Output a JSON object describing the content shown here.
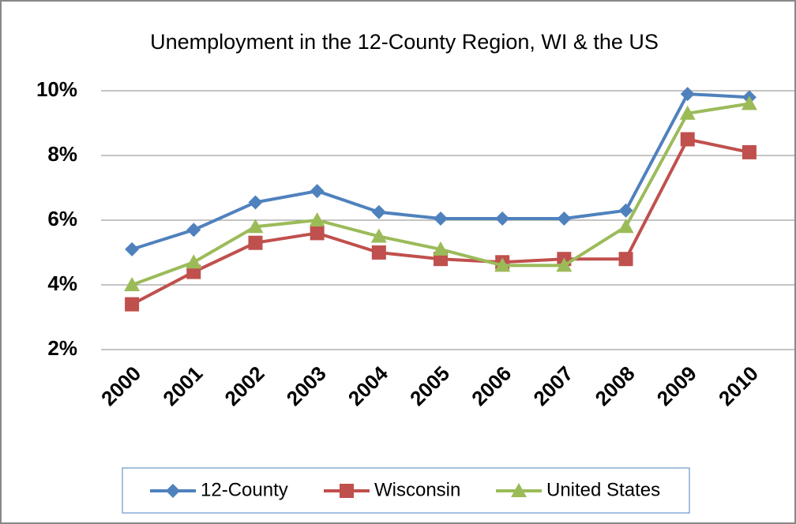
{
  "chart_data": {
    "type": "line",
    "title": "Unemployment in the 12-County Region, WI & the US",
    "categories": [
      "2000",
      "2001",
      "2002",
      "2003",
      "2004",
      "2005",
      "2006",
      "2007",
      "2008",
      "2009",
      "2010"
    ],
    "series": [
      {
        "name": "12-County",
        "color": "#4f81bd",
        "marker": "diamond",
        "values": [
          5.1,
          5.7,
          6.55,
          6.9,
          6.25,
          6.05,
          6.05,
          6.05,
          6.3,
          9.9,
          9.8
        ]
      },
      {
        "name": "Wisconsin",
        "color": "#c0504d",
        "marker": "square",
        "values": [
          3.4,
          4.4,
          5.3,
          5.6,
          5.0,
          4.8,
          4.7,
          4.8,
          4.8,
          8.5,
          8.1
        ]
      },
      {
        "name": "United States",
        "color": "#9bbb59",
        "marker": "triangle",
        "values": [
          4.0,
          4.7,
          5.8,
          6.0,
          5.5,
          5.1,
          4.6,
          4.6,
          5.8,
          9.3,
          9.6
        ]
      }
    ],
    "ylim": [
      2,
      10
    ],
    "yticks": [
      {
        "value": 2,
        "label": "2%"
      },
      {
        "value": 4,
        "label": "4%"
      },
      {
        "value": 6,
        "label": "6%"
      },
      {
        "value": 8,
        "label": "8%"
      },
      {
        "value": 10,
        "label": "10%"
      }
    ],
    "grid": true,
    "legend": "bottom"
  }
}
